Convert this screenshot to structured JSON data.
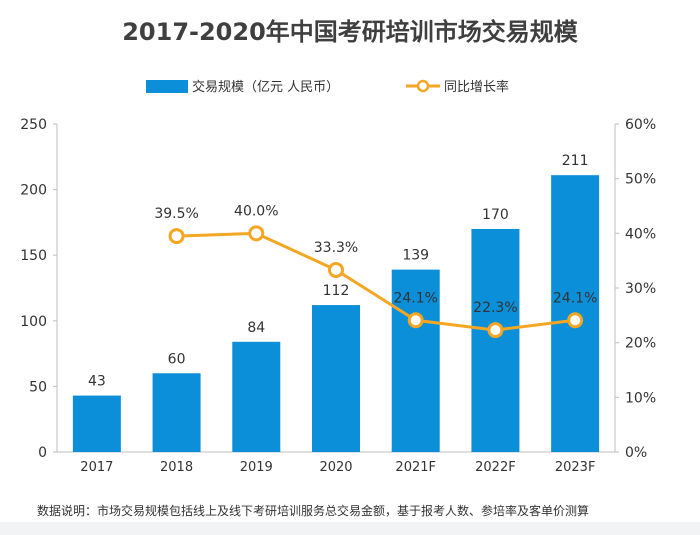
{
  "chart_data": {
    "type": "bar",
    "title": "2017-2020年中国考研培训市场交易规模",
    "categories": [
      "2017",
      "2018",
      "2019",
      "2020",
      "2021F",
      "2022F",
      "2023F"
    ],
    "series": [
      {
        "name": "交易规模（亿元 人民币）",
        "type": "bar",
        "axis": "left",
        "values": [
          43,
          60,
          84,
          112,
          139,
          170,
          211
        ],
        "color": "#0b8fd9"
      },
      {
        "name": "同比增长率",
        "type": "line",
        "axis": "right",
        "values": [
          null,
          39.5,
          40.0,
          33.3,
          24.1,
          22.3,
          24.1
        ],
        "labels": [
          "",
          "39.5%",
          "40.0%",
          "33.3%",
          "24.1%",
          "22.3%",
          "24.1%"
        ],
        "color": "#f5a623"
      }
    ],
    "bar_labels": [
      "43",
      "60",
      "84",
      "112",
      "139",
      "170",
      "211"
    ],
    "y_left": {
      "min": 0,
      "max": 250,
      "ticks": [
        "0",
        "50",
        "100",
        "150",
        "200",
        "250"
      ]
    },
    "y_right": {
      "min": 0,
      "max": 60,
      "ticks": [
        "0%",
        "10%",
        "20%",
        "30%",
        "40%",
        "50%",
        "60%"
      ]
    },
    "grid": false,
    "legend": "top-center",
    "footnote": "数据说明：市场交易规模包括线上及线下考研培训服务总交易金额，基于报考人数、参培率及客单价测算"
  }
}
